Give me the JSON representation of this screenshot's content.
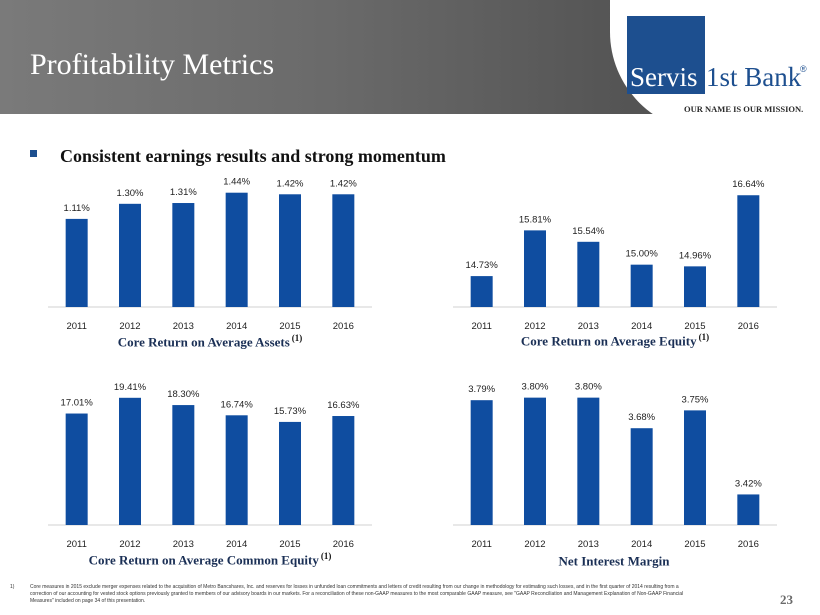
{
  "header": {
    "title": "Profitability Metrics"
  },
  "logo": {
    "box_text": "Servis",
    "bank_text": "1st Bank",
    "registered": "®",
    "tagline": "OUR NAME IS OUR MISSION."
  },
  "bullet": {
    "text": "Consistent earnings results and strong momentum"
  },
  "colors": {
    "bar": "#0f4da0",
    "header_gray": "#6a6a6a",
    "logo_blue": "#1d4f8f",
    "title_navy": "#1a2f55"
  },
  "chart_data": [
    {
      "type": "bar",
      "title": "Core Return on Average Assets",
      "title_note": "(1)",
      "categories": [
        "2011",
        "2012",
        "2013",
        "2014",
        "2015",
        "2016"
      ],
      "values": [
        1.11,
        1.3,
        1.31,
        1.44,
        1.42,
        1.42
      ],
      "labels": [
        "1.11%",
        "1.30%",
        "1.31%",
        "1.44%",
        "1.42%",
        "1.42%"
      ],
      "ylim": [
        0,
        1.6
      ]
    },
    {
      "type": "bar",
      "title": "Core Return on Average Equity",
      "title_note": "(1)",
      "categories": [
        "2011",
        "2012",
        "2013",
        "2014",
        "2015",
        "2016"
      ],
      "values": [
        14.73,
        15.81,
        15.54,
        15.0,
        14.96,
        16.64
      ],
      "labels": [
        "14.73%",
        "15.81%",
        "15.54%",
        "15.00%",
        "14.96%",
        "16.64%"
      ],
      "ylim": [
        14.0,
        17.0
      ]
    },
    {
      "type": "bar",
      "title": "Core Return on Average Common Equity",
      "title_note": "(1)",
      "categories": [
        "2011",
        "2012",
        "2013",
        "2014",
        "2015",
        "2016"
      ],
      "values": [
        17.01,
        19.41,
        18.3,
        16.74,
        15.73,
        16.63
      ],
      "labels": [
        "17.01%",
        "19.41%",
        "18.30%",
        "16.74%",
        "15.73%",
        "16.63%"
      ],
      "ylim": [
        0,
        20.6
      ]
    },
    {
      "type": "bar",
      "title": "Net Interest Margin",
      "title_note": "",
      "categories": [
        "2011",
        "2012",
        "2013",
        "2014",
        "2015",
        "2016"
      ],
      "values": [
        3.79,
        3.8,
        3.8,
        3.68,
        3.75,
        3.42
      ],
      "labels": [
        "3.79%",
        "3.80%",
        "3.80%",
        "3.68%",
        "3.75%",
        "3.42%"
      ],
      "ylim": [
        3.3,
        3.83
      ]
    }
  ],
  "footnote": {
    "marker": "1)",
    "text": "Core measures in 2015 exclude merger expenses related to the acquisition of Metro Bancshares, Inc. and reserves for losses in unfunded loan commitments and letters of credit resulting from our change in methodology for estimating such losses, and in the first quarter of 2014 resulting from a correction of our accounting for vested stock options previously granted to members of our advisory boards in our markets. For a reconciliation of these non-GAAP measures to the most comparable GAAP measure, see \"GAAP Reconciliation and Management Explanation of Non-GAAP Financial Measures\" included on page 34 of this presentation."
  },
  "page_number": "23"
}
